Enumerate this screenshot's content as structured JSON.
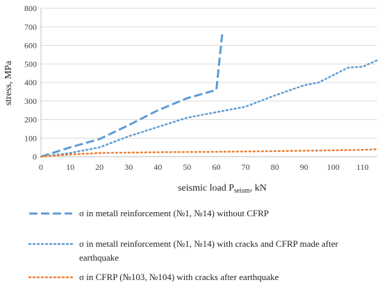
{
  "chart_data": {
    "type": "line",
    "title": "",
    "xlabel": "seismic load P",
    "xlabel_sub": "seism",
    "xlabel_unit": ", kN",
    "ylabel": "stress, MPa",
    "xlim": [
      0,
      115
    ],
    "ylim": [
      0,
      800
    ],
    "x_ticks": [
      0,
      10,
      20,
      30,
      40,
      50,
      60,
      70,
      80,
      90,
      100,
      110
    ],
    "y_ticks": [
      0,
      100,
      200,
      300,
      400,
      500,
      600,
      700,
      800
    ],
    "grid": "horizontal",
    "legend_position": "bottom",
    "series": [
      {
        "name": "σ in metall reinforcement (№1, №14) without CFRP",
        "color": "#5b9bd5",
        "style": "dashed",
        "x": [
          0,
          10,
          20,
          30,
          40,
          50,
          60,
          62
        ],
        "y": [
          0,
          50,
          95,
          170,
          250,
          315,
          360,
          660
        ]
      },
      {
        "name": "σ in metall reinforcement  (№1, №14) with cracks and CFRP made after earthquake",
        "name_lines": [
          "σ in metall reinforcement  (№1, №14) with cracks and CFRP made after",
          "earthquake"
        ],
        "color": "#5b9bd5",
        "style": "dotted",
        "x": [
          0,
          10,
          20,
          30,
          40,
          50,
          60,
          70,
          80,
          90,
          95,
          100,
          105,
          110,
          115
        ],
        "y": [
          0,
          20,
          50,
          110,
          160,
          210,
          240,
          270,
          330,
          385,
          400,
          440,
          480,
          485,
          520
        ]
      },
      {
        "name": "σ in CFRP (№103, №104) with cracks after earthquake",
        "color": "#ed7d31",
        "style": "dotted",
        "x": [
          0,
          10,
          20,
          30,
          40,
          50,
          60,
          70,
          80,
          90,
          100,
          110,
          115
        ],
        "y": [
          0,
          12,
          20,
          22,
          24,
          25,
          26,
          28,
          30,
          32,
          34,
          37,
          40
        ]
      }
    ]
  }
}
